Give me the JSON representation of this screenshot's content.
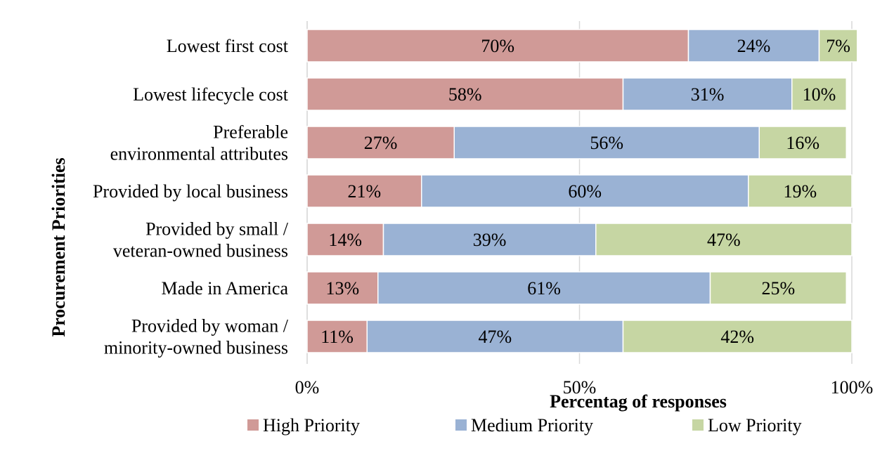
{
  "chart_data": {
    "type": "bar",
    "orientation": "horizontal",
    "stacked": true,
    "xlabel": "Percentag of responses",
    "ylabel": "Procurement Priorities",
    "xlim": [
      0,
      100
    ],
    "x_ticks": [
      "0%",
      "50%",
      "100%"
    ],
    "grid": true,
    "legend_position": "bottom",
    "categories": [
      [
        "Lowest first cost"
      ],
      [
        "Lowest lifecycle cost"
      ],
      [
        "Preferable",
        "environmental attributes"
      ],
      [
        "Provided by local business"
      ],
      [
        "Provided by small /",
        "veteran-owned business"
      ],
      [
        "Made in America"
      ],
      [
        "Provided by woman /",
        "minority-owned business"
      ]
    ],
    "series": [
      {
        "name": "High Priority",
        "color": "#d09a97",
        "values": [
          70,
          58,
          27,
          21,
          14,
          13,
          11
        ],
        "labels": [
          "70%",
          "58%",
          "27%",
          "21%",
          "14%",
          "13%",
          "11%"
        ]
      },
      {
        "name": "Medium Priority",
        "color": "#9ab2d4",
        "values": [
          24,
          31,
          56,
          60,
          39,
          61,
          47
        ],
        "labels": [
          "24%",
          "31%",
          "56%",
          "60%",
          "39%",
          "61%",
          "47%"
        ]
      },
      {
        "name": "Low Priority",
        "color": "#c6d6a3",
        "values": [
          7,
          10,
          16,
          19,
          47,
          25,
          42
        ],
        "labels": [
          "7%",
          "10%",
          "16%",
          "19%",
          "47%",
          "25%",
          "42%"
        ]
      }
    ]
  }
}
